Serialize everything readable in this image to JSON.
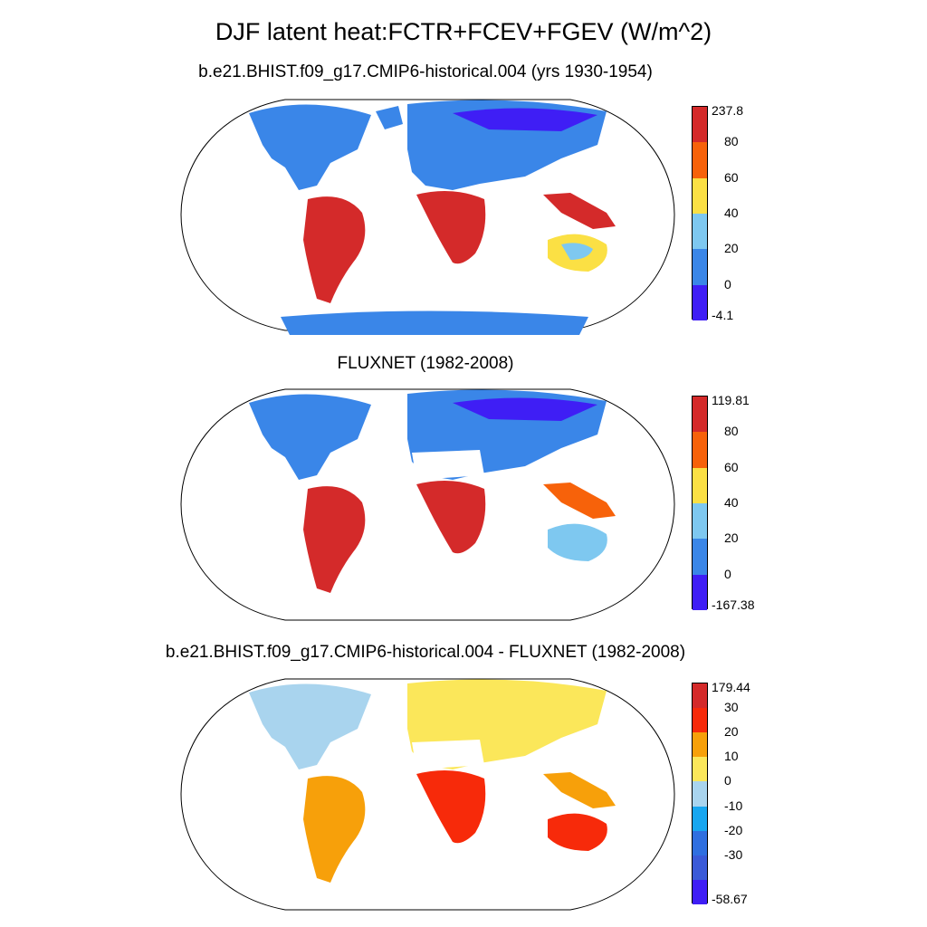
{
  "title": "DJF latent heat:FCTR+FCEV+FGEV (W/m^2)",
  "panels": [
    {
      "title": "b.e21.BHIST.f09_g17.CMIP6-historical.004 (yrs 1930-1954)",
      "colorbar": {
        "labels": [
          "237.8",
          "80",
          "60",
          "40",
          "20",
          "0",
          "-4.1"
        ],
        "colors": [
          "#d42a2a",
          "#f7620a",
          "#fbe044",
          "#7ec8f0",
          "#3a86e8",
          "#3f1ef5"
        ]
      }
    },
    {
      "title": "FLUXNET (1982-2008)",
      "colorbar": {
        "labels": [
          "119.81",
          "80",
          "60",
          "40",
          "20",
          "0",
          "-167.38"
        ],
        "colors": [
          "#d42a2a",
          "#f7620a",
          "#fbe044",
          "#7ec8f0",
          "#3a86e8",
          "#3f1ef5"
        ]
      }
    },
    {
      "title": "b.e21.BHIST.f09_g17.CMIP6-historical.004 - FLUXNET (1982-2008)",
      "colorbar": {
        "labels": [
          "179.44",
          "30",
          "20",
          "10",
          "0",
          "-10",
          "-20",
          "-30",
          "-58.67"
        ],
        "colors": [
          "#d42a2a",
          "#f72a0a",
          "#f7a00a",
          "#fbe75a",
          "#a9d4ee",
          "#17a6f0",
          "#2f6fe0",
          "#3a5ad8",
          "#3f1ef5"
        ]
      }
    }
  ]
}
